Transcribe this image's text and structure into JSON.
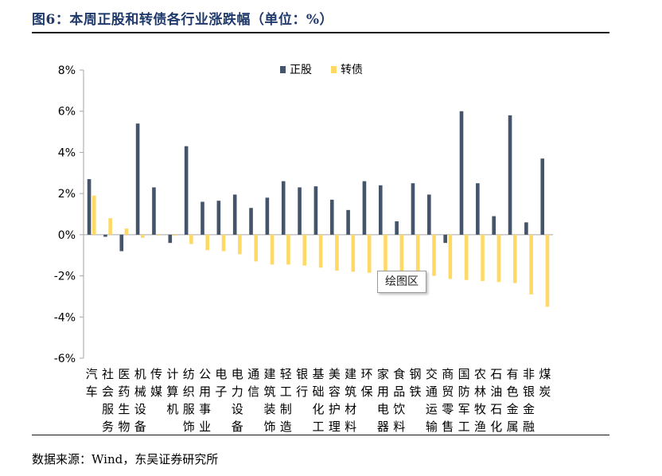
{
  "header": {
    "title": "图6：本周正股和转债各行业涨跌幅（单位：%）"
  },
  "footer": {
    "source": "数据来源：Wind，东吴证券研究所"
  },
  "tooltip": {
    "label": "绘图区"
  },
  "colors": {
    "stock": "#44546a",
    "bond": "#ffd966",
    "axis": "#a6a6a6"
  },
  "chart_data": {
    "type": "bar",
    "ylim": [
      -6,
      8
    ],
    "yticks": [
      -6,
      -4,
      -2,
      0,
      2,
      4,
      6,
      8
    ],
    "ytick_labels": [
      "-6%",
      "-4%",
      "-2%",
      "0%",
      "2%",
      "4%",
      "6%",
      "8%"
    ],
    "legend_position": "top-center",
    "categories": [
      "汽车",
      "社会服务",
      "医药生物",
      "机械设备",
      "传媒",
      "计算机",
      "纺织服饰",
      "公用事业",
      "电子",
      "电力设备",
      "通信",
      "建筑装饰",
      "轻工制造",
      "银行",
      "基础化工",
      "美容护理",
      "建筑材料",
      "环保",
      "家用电器",
      "食品饮料",
      "钢铁",
      "交通运输",
      "商贸零售",
      "国防军工",
      "农林牧渔",
      "石油石化",
      "有色金属",
      "非银金融",
      "煤炭"
    ],
    "series": [
      {
        "name": "正股",
        "values": [
          2.7,
          -0.1,
          -0.8,
          5.4,
          2.3,
          -0.4,
          4.3,
          1.6,
          1.65,
          1.95,
          1.3,
          1.8,
          2.6,
          2.3,
          2.35,
          1.7,
          1.2,
          2.6,
          2.4,
          0.65,
          2.5,
          1.95,
          -0.4,
          6.0,
          2.5,
          0.9,
          5.8,
          0.6,
          3.7
        ]
      },
      {
        "name": "转债",
        "values": [
          1.9,
          0.8,
          0.3,
          -0.15,
          -0.05,
          -0.05,
          -0.45,
          -0.75,
          -0.8,
          -0.95,
          -1.3,
          -1.45,
          -1.45,
          -1.5,
          -1.6,
          -1.75,
          -1.8,
          -1.85,
          -1.9,
          -1.9,
          -1.95,
          -2.0,
          -2.15,
          -2.2,
          -2.25,
          -2.3,
          -2.35,
          -2.9,
          -3.5
        ]
      }
    ]
  }
}
